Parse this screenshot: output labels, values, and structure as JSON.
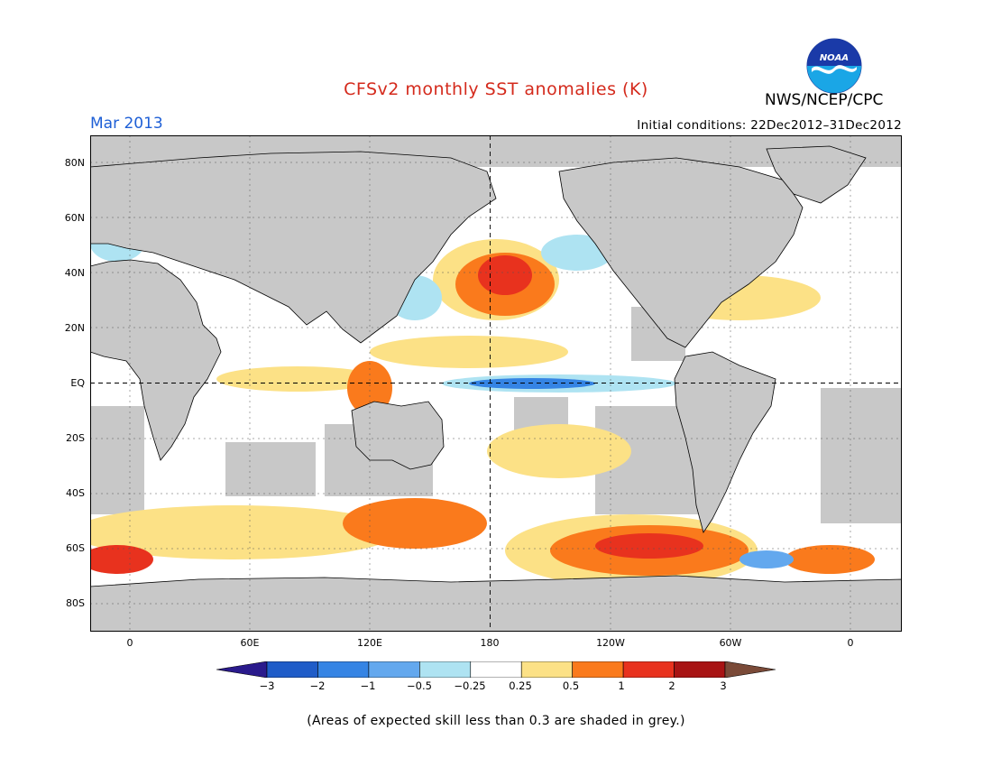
{
  "header": {
    "title": "CFSv2 monthly SST anomalies (K)",
    "agency": "NWS/NCEP/CPC",
    "logo_text": "NOAA",
    "month": "Mar 2013",
    "initial_conditions": "Initial conditions: 22Dec2012–31Dec2012"
  },
  "colors": {
    "title": "#d42a1c",
    "month": "#1e5fd6",
    "land": "#c8c8c8",
    "ocean_low_skill": "#c8c8c8"
  },
  "map": {
    "lat_labels": [
      "80N",
      "60N",
      "40N",
      "20N",
      "EQ",
      "20S",
      "40S",
      "60S",
      "80S"
    ],
    "lon_labels": [
      "0",
      "60E",
      "120E",
      "180",
      "120W",
      "60W",
      "0"
    ]
  },
  "colorbar": {
    "labels": [
      "−3",
      "−2",
      "−1",
      "−0.5",
      "−0.25",
      "0.25",
      "0.5",
      "1",
      "2",
      "3"
    ],
    "bins": [
      {
        "color": "#2a1a8c"
      },
      {
        "color": "#1f5cc8"
      },
      {
        "color": "#3584e4"
      },
      {
        "color": "#63a8ee"
      },
      {
        "color": "#aee3f2"
      },
      {
        "color": "#ffffff"
      },
      {
        "color": "#fce186"
      },
      {
        "color": "#fa7a1c"
      },
      {
        "color": "#e8321e"
      },
      {
        "color": "#a81414"
      },
      {
        "color": "#7a4a38"
      }
    ]
  },
  "footer": {
    "note": "(Areas of expected skill less than 0.3 are shaded in grey.)"
  }
}
